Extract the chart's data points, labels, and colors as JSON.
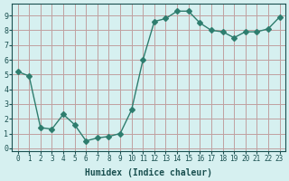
{
  "x": [
    0,
    1,
    2,
    3,
    4,
    5,
    6,
    7,
    8,
    9,
    10,
    11,
    12,
    13,
    14,
    15,
    16,
    17,
    18,
    19,
    20,
    21,
    22,
    23
  ],
  "y": [
    5.2,
    4.9,
    1.4,
    1.3,
    2.3,
    1.6,
    0.5,
    0.7,
    0.8,
    1.0,
    2.6,
    6.0,
    8.6,
    8.8,
    9.3,
    9.3,
    8.5,
    8.0,
    7.9,
    7.5,
    7.9,
    7.9,
    8.1,
    8.9
  ],
  "line_color": "#2e7d6e",
  "marker": "D",
  "marker_size": 3,
  "bg_color": "#d6f0f0",
  "grid_color": "#c0a0a0",
  "xlabel": "Humidex (Indice chaleur)",
  "xlabel_color": "#1a5050",
  "tick_color": "#1a5050",
  "xlim": [
    -0.5,
    23.5
  ],
  "ylim": [
    -0.2,
    9.8
  ],
  "xticks": [
    0,
    1,
    2,
    3,
    4,
    5,
    6,
    7,
    8,
    9,
    10,
    11,
    12,
    13,
    14,
    15,
    16,
    17,
    18,
    19,
    20,
    21,
    22,
    23
  ],
  "yticks": [
    0,
    1,
    2,
    3,
    4,
    5,
    6,
    7,
    8,
    9
  ]
}
